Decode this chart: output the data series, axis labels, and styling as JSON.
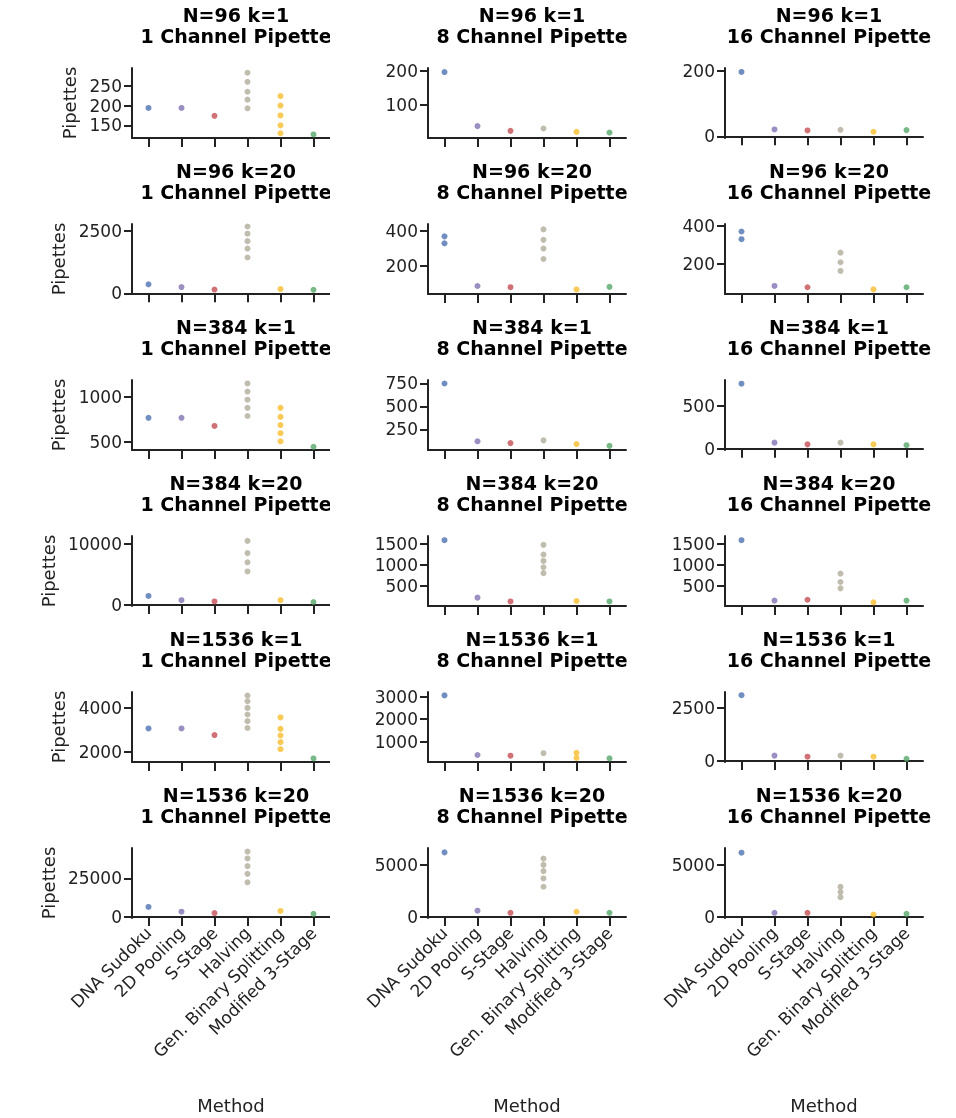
{
  "chart_data": [
    {
      "type": "scatter",
      "title": "N=96 k=1",
      "subtitle": "1 Channel Pipette",
      "ylabel": "Pipettes",
      "categories": [
        "DNA Sudoku",
        "2D Pooling",
        "S-Stage",
        "Halving",
        "Gen. Binary Splitting",
        "Modified 3-Stage"
      ],
      "ylim": [
        118,
        295
      ],
      "yticks": [
        150,
        200,
        250
      ],
      "marker": "circle",
      "tick_labels": "y",
      "series": [
        {
          "color": "#4c72b0",
          "x": [
            "DNA Sudoku"
          ],
          "values": [
            194
          ]
        },
        {
          "color": "#8172b3",
          "x": [
            "2D Pooling"
          ],
          "values": [
            194
          ]
        },
        {
          "color": "#c44e52",
          "x": [
            "S-Stage"
          ],
          "values": [
            174
          ]
        },
        {
          "color": "#b0ad9a",
          "x": [
            "Halving",
            "Halving",
            "Halving",
            "Halving",
            "Halving"
          ],
          "values": [
            193,
            215,
            235,
            260,
            283
          ]
        },
        {
          "color": "#f7bd2c",
          "x": [
            "Gen. Binary Splitting",
            "Gen. Binary Splitting",
            "Gen. Binary Splitting",
            "Gen. Binary Splitting",
            "Gen. Binary Splitting"
          ],
          "values": [
            130,
            150,
            175,
            200,
            224
          ]
        },
        {
          "color": "#55a868",
          "x": [
            "Modified 3-Stage"
          ],
          "values": [
            127
          ]
        }
      ]
    },
    {
      "type": "scatter",
      "title": "N=96 k=1",
      "subtitle": "8 Channel Pipette",
      "categories": [
        "DNA Sudoku",
        "2D Pooling",
        "S-Stage",
        "Halving",
        "Gen. Binary Splitting",
        "Modified 3-Stage"
      ],
      "ylim": [
        2,
        208
      ],
      "yticks": [
        100,
        200
      ],
      "marker": "circle",
      "tick_labels": "y",
      "series": [
        {
          "color": "#4c72b0",
          "x": [
            "DNA Sudoku"
          ],
          "values": [
            196
          ]
        },
        {
          "color": "#8172b3",
          "x": [
            "2D Pooling"
          ],
          "values": [
            37
          ]
        },
        {
          "color": "#c44e52",
          "x": [
            "S-Stage"
          ],
          "values": [
            23
          ]
        },
        {
          "color": "#b0ad9a",
          "x": [
            "Halving"
          ],
          "values": [
            30
          ]
        },
        {
          "color": "#f7bd2c",
          "x": [
            "Gen. Binary Splitting"
          ],
          "values": [
            20
          ]
        },
        {
          "color": "#55a868",
          "x": [
            "Modified 3-Stage"
          ],
          "values": [
            18
          ]
        }
      ]
    },
    {
      "type": "scatter",
      "title": "N=96 k=1",
      "subtitle": "16 Channel Pipette",
      "categories": [
        "DNA Sudoku",
        "2D Pooling",
        "S-Stage",
        "Halving",
        "Gen. Binary Splitting",
        "Modified 3-Stage"
      ],
      "ylim": [
        -5,
        208
      ],
      "yticks": [
        0,
        200
      ],
      "marker": "circle",
      "tick_labels": "y",
      "series": [
        {
          "color": "#4c72b0",
          "x": [
            "DNA Sudoku"
          ],
          "values": [
            196
          ]
        },
        {
          "color": "#8172b3",
          "x": [
            "2D Pooling"
          ],
          "values": [
            21
          ]
        },
        {
          "color": "#c44e52",
          "x": [
            "S-Stage"
          ],
          "values": [
            18
          ]
        },
        {
          "color": "#b0ad9a",
          "x": [
            "Halving"
          ],
          "values": [
            20
          ]
        },
        {
          "color": "#f7bd2c",
          "x": [
            "Gen. Binary Splitting"
          ],
          "values": [
            14
          ]
        },
        {
          "color": "#55a868",
          "x": [
            "Modified 3-Stage"
          ],
          "values": [
            19
          ]
        }
      ]
    },
    {
      "type": "scatter",
      "title": "N=96 k=20",
      "subtitle": "1 Channel Pipette",
      "ylabel": "Pipettes",
      "categories": [
        "DNA Sudoku",
        "2D Pooling",
        "S-Stage",
        "Halving",
        "Gen. Binary Splitting",
        "Modified 3-Stage"
      ],
      "ylim": [
        -30,
        2790
      ],
      "yticks": [
        0,
        2500
      ],
      "marker": "circle",
      "tick_labels": "y",
      "series": [
        {
          "color": "#4c72b0",
          "x": [
            "DNA Sudoku"
          ],
          "values": [
            360
          ]
        },
        {
          "color": "#8172b3",
          "x": [
            "2D Pooling"
          ],
          "values": [
            250
          ]
        },
        {
          "color": "#c44e52",
          "x": [
            "S-Stage"
          ],
          "values": [
            150
          ]
        },
        {
          "color": "#b0ad9a",
          "x": [
            "Halving",
            "Halving",
            "Halving",
            "Halving",
            "Halving"
          ],
          "values": [
            1440,
            1800,
            2100,
            2400,
            2690
          ]
        },
        {
          "color": "#f7bd2c",
          "x": [
            "Gen. Binary Splitting"
          ],
          "values": [
            170
          ]
        },
        {
          "color": "#55a868",
          "x": [
            "Modified 3-Stage"
          ],
          "values": [
            140
          ]
        }
      ]
    },
    {
      "type": "scatter",
      "title": "N=96 k=20",
      "subtitle": "8 Channel Pipette",
      "categories": [
        "DNA Sudoku",
        "2D Pooling",
        "S-Stage",
        "Halving",
        "Gen. Binary Splitting",
        "Modified 3-Stage"
      ],
      "ylim": [
        39,
        441
      ],
      "yticks": [
        200,
        400
      ],
      "marker": "circle",
      "tick_labels": "y",
      "series": [
        {
          "color": "#4c72b0",
          "x": [
            "DNA Sudoku",
            "DNA Sudoku"
          ],
          "values": [
            330,
            370
          ]
        },
        {
          "color": "#8172b3",
          "x": [
            "2D Pooling"
          ],
          "values": [
            85
          ]
        },
        {
          "color": "#c44e52",
          "x": [
            "S-Stage"
          ],
          "values": [
            78
          ]
        },
        {
          "color": "#b0ad9a",
          "x": [
            "Halving",
            "Halving",
            "Halving",
            "Halving"
          ],
          "values": [
            240,
            300,
            350,
            410
          ]
        },
        {
          "color": "#f7bd2c",
          "x": [
            "Gen. Binary Splitting"
          ],
          "values": [
            65
          ]
        },
        {
          "color": "#55a868",
          "x": [
            "Modified 3-Stage"
          ],
          "values": [
            80
          ]
        }
      ]
    },
    {
      "type": "scatter",
      "title": "N=96 k=20",
      "subtitle": "16 Channel Pipette",
      "categories": [
        "DNA Sudoku",
        "2D Pooling",
        "S-Stage",
        "Halving",
        "Gen. Binary Splitting",
        "Modified 3-Stage"
      ],
      "ylim": [
        45,
        409
      ],
      "yticks": [
        200,
        400
      ],
      "marker": "circle",
      "tick_labels": "y",
      "series": [
        {
          "color": "#4c72b0",
          "x": [
            "DNA Sudoku",
            "DNA Sudoku"
          ],
          "values": [
            330,
            370
          ]
        },
        {
          "color": "#8172b3",
          "x": [
            "2D Pooling"
          ],
          "values": [
            87
          ]
        },
        {
          "color": "#c44e52",
          "x": [
            "S-Stage"
          ],
          "values": [
            80
          ]
        },
        {
          "color": "#b0ad9a",
          "x": [
            "Halving",
            "Halving",
            "Halving"
          ],
          "values": [
            165,
            210,
            260
          ]
        },
        {
          "color": "#f7bd2c",
          "x": [
            "Gen. Binary Splitting"
          ],
          "values": [
            69
          ]
        },
        {
          "color": "#55a868",
          "x": [
            "Modified 3-Stage"
          ],
          "values": [
            80
          ]
        }
      ]
    },
    {
      "type": "scatter",
      "title": "N=384 k=1",
      "subtitle": "1 Channel Pipette",
      "ylabel": "Pipettes",
      "categories": [
        "DNA Sudoku",
        "2D Pooling",
        "S-Stage",
        "Halving",
        "Gen. Binary Splitting",
        "Modified 3-Stage"
      ],
      "ylim": [
        414,
        1188
      ],
      "yticks": [
        500,
        1000
      ],
      "marker": "circle",
      "tick_labels": "y",
      "series": [
        {
          "color": "#4c72b0",
          "x": [
            "DNA Sudoku"
          ],
          "values": [
            770
          ]
        },
        {
          "color": "#8172b3",
          "x": [
            "2D Pooling"
          ],
          "values": [
            770
          ]
        },
        {
          "color": "#c44e52",
          "x": [
            "S-Stage"
          ],
          "values": [
            680
          ]
        },
        {
          "color": "#b0ad9a",
          "x": [
            "Halving",
            "Halving",
            "Halving",
            "Halving",
            "Halving"
          ],
          "values": [
            790,
            880,
            970,
            1060,
            1150
          ]
        },
        {
          "color": "#f7bd2c",
          "x": [
            "Gen. Binary Splitting",
            "Gen. Binary Splitting",
            "Gen. Binary Splitting",
            "Gen. Binary Splitting",
            "Gen. Binary Splitting"
          ],
          "values": [
            510,
            600,
            690,
            780,
            880
          ]
        },
        {
          "color": "#55a868",
          "x": [
            "Modified 3-Stage"
          ],
          "values": [
            450
          ]
        }
      ]
    },
    {
      "type": "scatter",
      "title": "N=384 k=1",
      "subtitle": "8 Channel Pipette",
      "categories": [
        "DNA Sudoku",
        "2D Pooling",
        "S-Stage",
        "Halving",
        "Gen. Binary Splitting",
        "Modified 3-Stage"
      ],
      "ylim": [
        25,
        788
      ],
      "yticks": [
        250,
        500,
        750
      ],
      "marker": "circle",
      "tick_labels": "y",
      "series": [
        {
          "color": "#4c72b0",
          "x": [
            "DNA Sudoku"
          ],
          "values": [
            750
          ]
        },
        {
          "color": "#8172b3",
          "x": [
            "2D Pooling"
          ],
          "values": [
            120
          ]
        },
        {
          "color": "#c44e52",
          "x": [
            "S-Stage"
          ],
          "values": [
            100
          ]
        },
        {
          "color": "#b0ad9a",
          "x": [
            "Halving"
          ],
          "values": [
            130
          ]
        },
        {
          "color": "#f7bd2c",
          "x": [
            "Gen. Binary Splitting"
          ],
          "values": [
            90
          ]
        },
        {
          "color": "#55a868",
          "x": [
            "Modified 3-Stage"
          ],
          "values": [
            70
          ]
        }
      ]
    },
    {
      "type": "scatter",
      "title": "N=384 k=1",
      "subtitle": "16 Channel Pipette",
      "categories": [
        "DNA Sudoku",
        "2D Pooling",
        "S-Stage",
        "Halving",
        "Gen. Binary Splitting",
        "Modified 3-Stage"
      ],
      "ylim": [
        -16,
        803
      ],
      "yticks": [
        0,
        500
      ],
      "marker": "circle",
      "tick_labels": "y",
      "series": [
        {
          "color": "#4c72b0",
          "x": [
            "DNA Sudoku"
          ],
          "values": [
            760
          ]
        },
        {
          "color": "#8172b3",
          "x": [
            "2D Pooling"
          ],
          "values": [
            70
          ]
        },
        {
          "color": "#c44e52",
          "x": [
            "S-Stage"
          ],
          "values": [
            50
          ]
        },
        {
          "color": "#b0ad9a",
          "x": [
            "Halving"
          ],
          "values": [
            70
          ]
        },
        {
          "color": "#f7bd2c",
          "x": [
            "Gen. Binary Splitting"
          ],
          "values": [
            50
          ]
        },
        {
          "color": "#55a868",
          "x": [
            "Modified 3-Stage"
          ],
          "values": [
            40
          ]
        }
      ]
    },
    {
      "type": "scatter",
      "title": "N=384 k=20",
      "subtitle": "1 Channel Pipette",
      "ylabel": "Pipettes",
      "categories": [
        "DNA Sudoku",
        "2D Pooling",
        "S-Stage",
        "Halving",
        "Gen. Binary Splitting",
        "Modified 3-Stage"
      ],
      "ylim": [
        -150,
        11300
      ],
      "yticks": [
        0,
        10000
      ],
      "marker": "circle",
      "tick_labels": "y",
      "series": [
        {
          "color": "#4c72b0",
          "x": [
            "DNA Sudoku"
          ],
          "values": [
            1500
          ]
        },
        {
          "color": "#8172b3",
          "x": [
            "2D Pooling"
          ],
          "values": [
            800
          ]
        },
        {
          "color": "#c44e52",
          "x": [
            "S-Stage"
          ],
          "values": [
            600
          ]
        },
        {
          "color": "#b0ad9a",
          "x": [
            "Halving",
            "Halving",
            "Halving",
            "Halving"
          ],
          "values": [
            5500,
            7000,
            8500,
            10500
          ]
        },
        {
          "color": "#f7bd2c",
          "x": [
            "Gen. Binary Splitting"
          ],
          "values": [
            800
          ]
        },
        {
          "color": "#55a868",
          "x": [
            "Modified 3-Stage"
          ],
          "values": [
            500
          ]
        }
      ]
    },
    {
      "type": "scatter",
      "title": "N=384 k=20",
      "subtitle": "8 Channel Pipette",
      "categories": [
        "DNA Sudoku",
        "2D Pooling",
        "S-Stage",
        "Halving",
        "Gen. Binary Splitting",
        "Modified 3-Stage"
      ],
      "ylim": [
        32,
        1690
      ],
      "yticks": [
        500,
        1000,
        1500
      ],
      "marker": "circle",
      "tick_labels": "y",
      "series": [
        {
          "color": "#4c72b0",
          "x": [
            "DNA Sudoku"
          ],
          "values": [
            1590
          ]
        },
        {
          "color": "#8172b3",
          "x": [
            "2D Pooling"
          ],
          "values": [
            230
          ]
        },
        {
          "color": "#c44e52",
          "x": [
            "S-Stage"
          ],
          "values": [
            140
          ]
        },
        {
          "color": "#b0ad9a",
          "x": [
            "Halving",
            "Halving",
            "Halving",
            "Halving",
            "Halving"
          ],
          "values": [
            810,
            950,
            1100,
            1250,
            1480
          ]
        },
        {
          "color": "#f7bd2c",
          "x": [
            "Gen. Binary Splitting"
          ],
          "values": [
            150
          ]
        },
        {
          "color": "#55a868",
          "x": [
            "Modified 3-Stage"
          ],
          "values": [
            140
          ]
        }
      ]
    },
    {
      "type": "scatter",
      "title": "N=384 k=20",
      "subtitle": "16 Channel Pipette",
      "categories": [
        "DNA Sudoku",
        "2D Pooling",
        "S-Stage",
        "Halving",
        "Gen. Binary Splitting",
        "Modified 3-Stage"
      ],
      "ylim": [
        32,
        1690
      ],
      "yticks": [
        500,
        1000,
        1500
      ],
      "marker": "circle",
      "tick_labels": "y",
      "series": [
        {
          "color": "#4c72b0",
          "x": [
            "DNA Sudoku"
          ],
          "values": [
            1590
          ]
        },
        {
          "color": "#8172b3",
          "x": [
            "2D Pooling"
          ],
          "values": [
            160
          ]
        },
        {
          "color": "#c44e52",
          "x": [
            "S-Stage"
          ],
          "values": [
            180
          ]
        },
        {
          "color": "#b0ad9a",
          "x": [
            "Halving",
            "Halving",
            "Halving"
          ],
          "values": [
            450,
            600,
            800
          ]
        },
        {
          "color": "#f7bd2c",
          "x": [
            "Gen. Binary Splitting"
          ],
          "values": [
            120
          ]
        },
        {
          "color": "#55a868",
          "x": [
            "Modified 3-Stage"
          ],
          "values": [
            160
          ]
        }
      ]
    },
    {
      "type": "scatter",
      "title": "N=1536 k=1",
      "subtitle": "1 Channel Pipette",
      "ylabel": "Pipettes",
      "categories": [
        "DNA Sudoku",
        "2D Pooling",
        "S-Stage",
        "Halving",
        "Gen. Binary Splitting",
        "Modified 3-Stage"
      ],
      "ylim": [
        1550,
        4720
      ],
      "yticks": [
        2000,
        4000
      ],
      "marker": "circle",
      "tick_labels": "y",
      "series": [
        {
          "color": "#4c72b0",
          "x": [
            "DNA Sudoku"
          ],
          "values": [
            3070
          ]
        },
        {
          "color": "#8172b3",
          "x": [
            "2D Pooling"
          ],
          "values": [
            3070
          ]
        },
        {
          "color": "#c44e52",
          "x": [
            "S-Stage"
          ],
          "values": [
            2770
          ]
        },
        {
          "color": "#b0ad9a",
          "x": [
            "Halving",
            "Halving",
            "Halving",
            "Halving",
            "Halving",
            "Halving"
          ],
          "values": [
            3090,
            3400,
            3700,
            4000,
            4300,
            4560
          ]
        },
        {
          "color": "#f7bd2c",
          "x": [
            "Gen. Binary Splitting",
            "Gen. Binary Splitting",
            "Gen. Binary Splitting",
            "Gen. Binary Splitting",
            "Gen. Binary Splitting"
          ],
          "values": [
            2130,
            2450,
            2750,
            3050,
            3570
          ]
        },
        {
          "color": "#55a868",
          "x": [
            "Modified 3-Stage"
          ],
          "values": [
            1710
          ]
        }
      ]
    },
    {
      "type": "scatter",
      "title": "N=1536 k=1",
      "subtitle": "8 Channel Pipette",
      "categories": [
        "DNA Sudoku",
        "2D Pooling",
        "S-Stage",
        "Halving",
        "Gen. Binary Splitting",
        "Modified 3-Stage"
      ],
      "ylim": [
        90,
        3200
      ],
      "yticks": [
        1000,
        2000,
        3000
      ],
      "marker": "circle",
      "tick_labels": "y",
      "series": [
        {
          "color": "#4c72b0",
          "x": [
            "DNA Sudoku"
          ],
          "values": [
            3050
          ]
        },
        {
          "color": "#8172b3",
          "x": [
            "2D Pooling"
          ],
          "values": [
            400
          ]
        },
        {
          "color": "#c44e52",
          "x": [
            "S-Stage"
          ],
          "values": [
            370
          ]
        },
        {
          "color": "#b0ad9a",
          "x": [
            "Halving"
          ],
          "values": [
            480
          ]
        },
        {
          "color": "#f7bd2c",
          "x": [
            "Gen. Binary Splitting",
            "Gen. Binary Splitting"
          ],
          "values": [
            270,
            500
          ]
        },
        {
          "color": "#55a868",
          "x": [
            "Modified 3-Stage"
          ],
          "values": [
            250
          ]
        }
      ]
    },
    {
      "type": "scatter",
      "title": "N=1536 k=1",
      "subtitle": "16 Channel Pipette",
      "categories": [
        "DNA Sudoku",
        "2D Pooling",
        "S-Stage",
        "Halving",
        "Gen. Binary Splitting",
        "Modified 3-Stage"
      ],
      "ylim": [
        -50,
        3230
      ],
      "yticks": [
        0,
        2500
      ],
      "marker": "circle",
      "tick_labels": "y",
      "series": [
        {
          "color": "#4c72b0",
          "x": [
            "DNA Sudoku"
          ],
          "values": [
            3080
          ]
        },
        {
          "color": "#8172b3",
          "x": [
            "2D Pooling"
          ],
          "values": [
            250
          ]
        },
        {
          "color": "#c44e52",
          "x": [
            "S-Stage"
          ],
          "values": [
            200
          ]
        },
        {
          "color": "#b0ad9a",
          "x": [
            "Halving"
          ],
          "values": [
            250
          ]
        },
        {
          "color": "#f7bd2c",
          "x": [
            "Gen. Binary Splitting"
          ],
          "values": [
            200
          ]
        },
        {
          "color": "#55a868",
          "x": [
            "Modified 3-Stage"
          ],
          "values": [
            100
          ]
        }
      ]
    },
    {
      "type": "scatter",
      "title": "N=1536 k=20",
      "subtitle": "1 Channel Pipette",
      "ylabel": "Pipettes",
      "xlabel": "Method",
      "categories": [
        "DNA Sudoku",
        "2D Pooling",
        "S-Stage",
        "Halving",
        "Gen. Binary Splitting",
        "Modified 3-Stage"
      ],
      "ylim": [
        -700,
        44800
      ],
      "yticks": [
        0,
        25000
      ],
      "marker": "circle",
      "series": [
        {
          "color": "#4c72b0",
          "x": [
            "DNA Sudoku"
          ],
          "values": [
            6500
          ]
        },
        {
          "color": "#8172b3",
          "x": [
            "2D Pooling"
          ],
          "values": [
            3400
          ]
        },
        {
          "color": "#c44e52",
          "x": [
            "S-Stage"
          ],
          "values": [
            2500
          ]
        },
        {
          "color": "#b0ad9a",
          "x": [
            "Halving",
            "Halving",
            "Halving",
            "Halving",
            "Halving"
          ],
          "values": [
            22500,
            28000,
            33000,
            38000,
            42500
          ]
        },
        {
          "color": "#f7bd2c",
          "x": [
            "Gen. Binary Splitting"
          ],
          "values": [
            3900
          ]
        },
        {
          "color": "#55a868",
          "x": [
            "Modified 3-Stage"
          ],
          "values": [
            2000
          ]
        }
      ]
    },
    {
      "type": "scatter",
      "title": "N=1536 k=20",
      "subtitle": "8 Channel Pipette",
      "xlabel": "Method",
      "categories": [
        "DNA Sudoku",
        "2D Pooling",
        "S-Stage",
        "Halving",
        "Gen. Binary Splitting",
        "Modified 3-Stage"
      ],
      "ylim": [
        -100,
        6620
      ],
      "yticks": [
        0,
        5000
      ],
      "marker": "circle",
      "series": [
        {
          "color": "#4c72b0",
          "x": [
            "DNA Sudoku"
          ],
          "values": [
            6200
          ]
        },
        {
          "color": "#8172b3",
          "x": [
            "2D Pooling"
          ],
          "values": [
            600
          ]
        },
        {
          "color": "#c44e52",
          "x": [
            "S-Stage"
          ],
          "values": [
            400
          ]
        },
        {
          "color": "#b0ad9a",
          "x": [
            "Halving",
            "Halving",
            "Halving",
            "Halving",
            "Halving"
          ],
          "values": [
            2900,
            3700,
            4400,
            5000,
            5600
          ]
        },
        {
          "color": "#f7bd2c",
          "x": [
            "Gen. Binary Splitting"
          ],
          "values": [
            500
          ]
        },
        {
          "color": "#55a868",
          "x": [
            "Modified 3-Stage"
          ],
          "values": [
            400
          ]
        }
      ]
    },
    {
      "type": "scatter",
      "title": "N=1536 k=20",
      "subtitle": "16 Channel Pipette",
      "xlabel": "Method",
      "categories": [
        "DNA Sudoku",
        "2D Pooling",
        "S-Stage",
        "Halving",
        "Gen. Binary Splitting",
        "Modified 3-Stage"
      ],
      "ylim": [
        -100,
        6650
      ],
      "yticks": [
        0,
        5000
      ],
      "marker": "circle",
      "series": [
        {
          "color": "#4c72b0",
          "x": [
            "DNA Sudoku"
          ],
          "values": [
            6200
          ]
        },
        {
          "color": "#8172b3",
          "x": [
            "2D Pooling"
          ],
          "values": [
            400
          ]
        },
        {
          "color": "#c44e52",
          "x": [
            "S-Stage"
          ],
          "values": [
            400
          ]
        },
        {
          "color": "#b0ad9a",
          "x": [
            "Halving",
            "Halving",
            "Halving"
          ],
          "values": [
            1900,
            2400,
            2900
          ]
        },
        {
          "color": "#f7bd2c",
          "x": [
            "Gen. Binary Splitting"
          ],
          "values": [
            240
          ]
        },
        {
          "color": "#55a868",
          "x": [
            "Modified 3-Stage"
          ],
          "values": [
            300
          ]
        }
      ]
    }
  ]
}
